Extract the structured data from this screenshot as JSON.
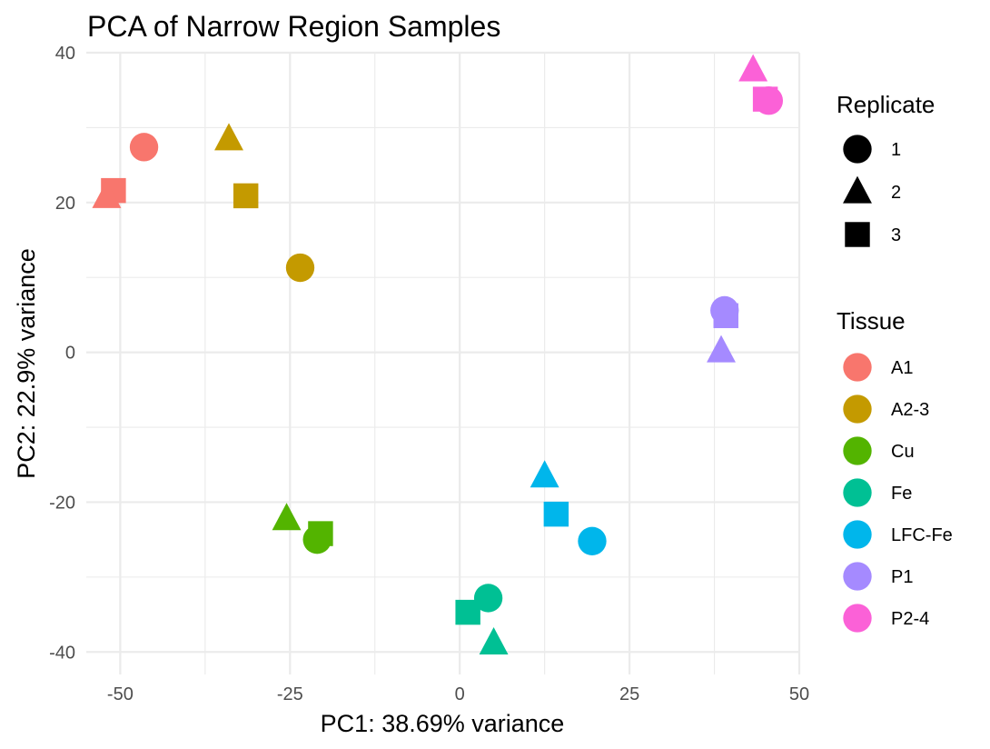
{
  "chart_data": {
    "type": "scatter",
    "title": "PCA of Narrow Region Samples",
    "xlabel": "PC1: 38.69% variance",
    "ylabel": "PC2: 22.9% variance",
    "xlim": [
      -55,
      50
    ],
    "ylim": [
      -43,
      40
    ],
    "x_ticks": [
      -50,
      -25,
      0,
      25,
      50
    ],
    "x_tick_labels": [
      "-50",
      "-25",
      "0",
      "25",
      "50"
    ],
    "y_ticks": [
      -40,
      -20,
      0,
      20,
      40
    ],
    "y_tick_labels": [
      "-40",
      "-20",
      "0",
      "20",
      "40"
    ],
    "grid": true,
    "legend_position": "right",
    "shape_legend": {
      "title": "Replicate",
      "items": [
        {
          "label": "1",
          "shape": "circle"
        },
        {
          "label": "2",
          "shape": "triangle"
        },
        {
          "label": "3",
          "shape": "square"
        }
      ]
    },
    "color_legend": {
      "title": "Tissue",
      "items": [
        {
          "label": "A1",
          "color": "#F8766D"
        },
        {
          "label": "A2-3",
          "color": "#C49A00"
        },
        {
          "label": "Cu",
          "color": "#53B400"
        },
        {
          "label": "Fe",
          "color": "#00C094"
        },
        {
          "label": "LFC-Fe",
          "color": "#00B6EB"
        },
        {
          "label": "P1",
          "color": "#A58AFF"
        },
        {
          "label": "P2-4",
          "color": "#FB61D7"
        }
      ]
    },
    "points": [
      {
        "tissue": "A1",
        "replicate": "1",
        "x": -46.5,
        "y": 27.4
      },
      {
        "tissue": "A1",
        "replicate": "2",
        "x": -52.0,
        "y": 20.8
      },
      {
        "tissue": "A1",
        "replicate": "3",
        "x": -51.0,
        "y": 21.6
      },
      {
        "tissue": "A2-3",
        "replicate": "1",
        "x": -23.5,
        "y": 11.3
      },
      {
        "tissue": "A2-3",
        "replicate": "2",
        "x": -34.0,
        "y": 28.5
      },
      {
        "tissue": "A2-3",
        "replicate": "3",
        "x": -31.5,
        "y": 20.9
      },
      {
        "tissue": "Cu",
        "replicate": "1",
        "x": -21.0,
        "y": -25.0
      },
      {
        "tissue": "Cu",
        "replicate": "2",
        "x": -25.5,
        "y": -22.2
      },
      {
        "tissue": "Cu",
        "replicate": "3",
        "x": -20.5,
        "y": -24.2
      },
      {
        "tissue": "Fe",
        "replicate": "1",
        "x": 4.2,
        "y": -32.8
      },
      {
        "tissue": "Fe",
        "replicate": "2",
        "x": 5.0,
        "y": -38.8
      },
      {
        "tissue": "Fe",
        "replicate": "3",
        "x": 1.2,
        "y": -34.7
      },
      {
        "tissue": "LFC-Fe",
        "replicate": "1",
        "x": 19.5,
        "y": -25.2
      },
      {
        "tissue": "LFC-Fe",
        "replicate": "2",
        "x": 12.5,
        "y": -16.5
      },
      {
        "tissue": "LFC-Fe",
        "replicate": "3",
        "x": 14.2,
        "y": -21.6
      },
      {
        "tissue": "P1",
        "replicate": "1",
        "x": 39.0,
        "y": 5.6
      },
      {
        "tissue": "P1",
        "replicate": "2",
        "x": 38.5,
        "y": 0.2
      },
      {
        "tissue": "P1",
        "replicate": "3",
        "x": 39.2,
        "y": 4.9
      },
      {
        "tissue": "P2-4",
        "replicate": "1",
        "x": 45.5,
        "y": 33.6
      },
      {
        "tissue": "P2-4",
        "replicate": "2",
        "x": 43.2,
        "y": 37.7
      },
      {
        "tissue": "P2-4",
        "replicate": "3",
        "x": 45.0,
        "y": 33.8
      }
    ]
  }
}
